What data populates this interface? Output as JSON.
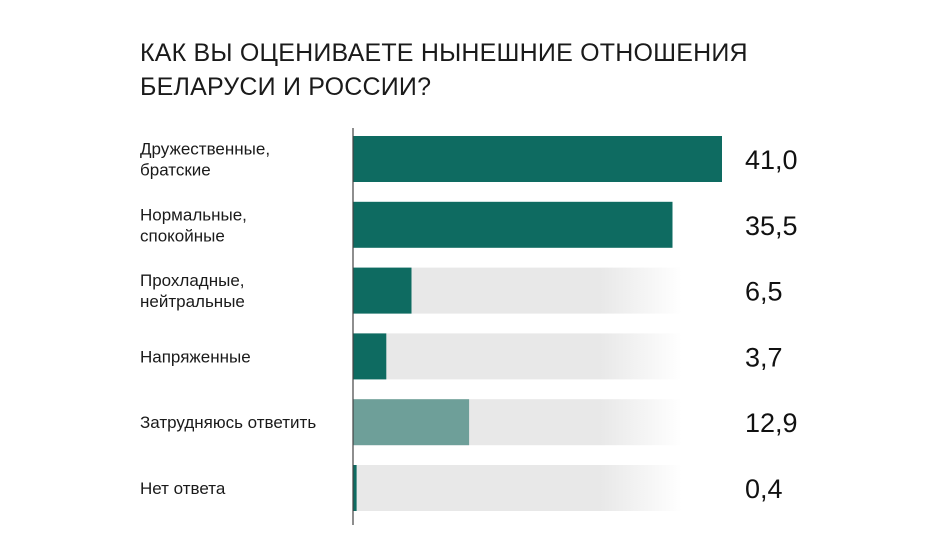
{
  "chart_data": {
    "type": "bar",
    "orientation": "horizontal",
    "title_lines": [
      "КАК ВЫ ОЦЕНИВАЕТЕ НЫНЕШНИЕ ОТНОШЕНИЯ",
      "БЕЛАРУСИ И РОССИИ?"
    ],
    "categories": [
      [
        "Дружественные,",
        "братские"
      ],
      [
        "Нормальные,",
        "спокойные"
      ],
      [
        "Прохладные,",
        "нейтральные"
      ],
      [
        "Напряженные"
      ],
      [
        "Затрудняюсь ответить"
      ],
      [
        "Нет ответа"
      ]
    ],
    "values": [
      41.0,
      35.5,
      6.5,
      3.7,
      12.9,
      0.4
    ],
    "value_labels": [
      "41,0",
      "35,5",
      "6,5",
      "3,7",
      "12,9",
      "0,4"
    ],
    "xlim": [
      0,
      41.0
    ],
    "grid": false,
    "colors": {
      "primary": "#0e6b61",
      "muted": "#6e9f99",
      "track": "#e8e8e8",
      "axis": "#444444"
    },
    "bar_styles": [
      "primary",
      "primary",
      "primary",
      "primary",
      "muted",
      "primary"
    ]
  }
}
